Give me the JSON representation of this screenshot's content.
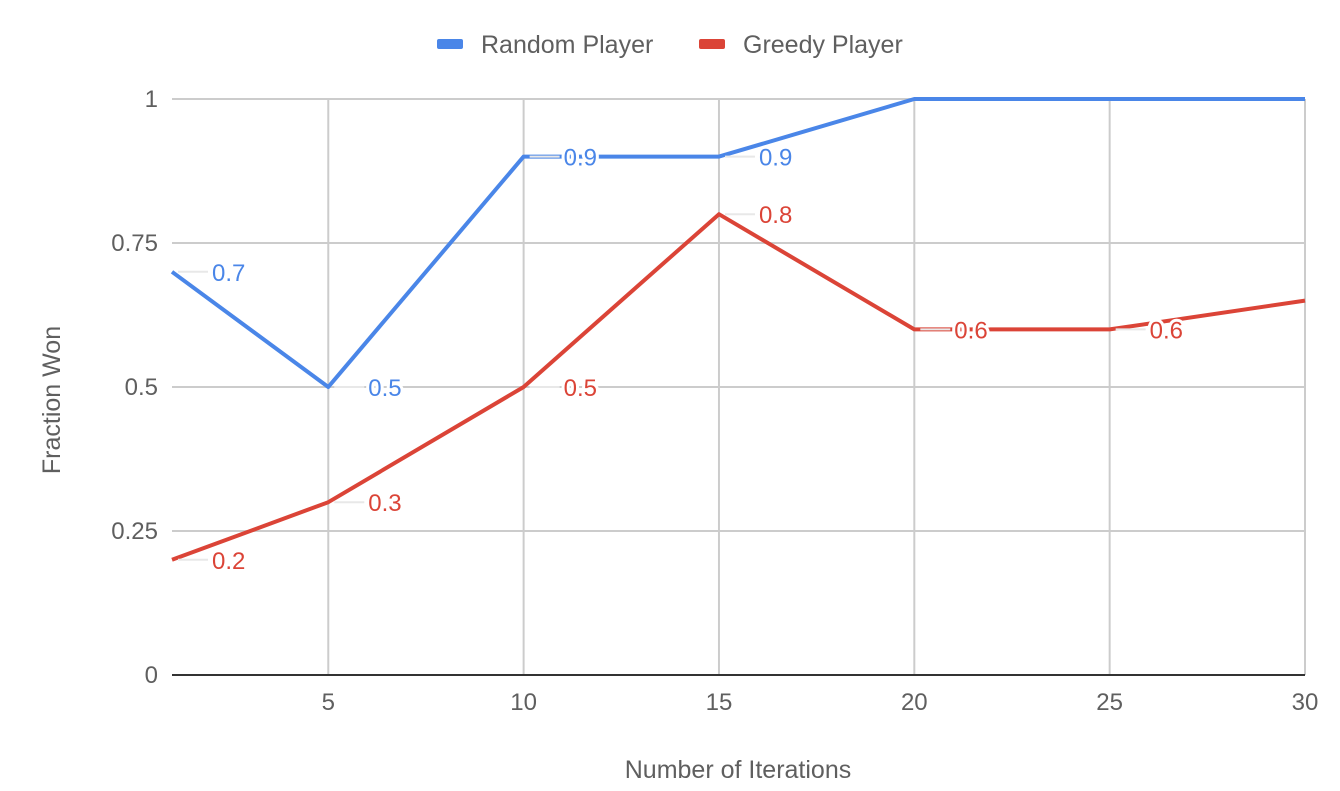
{
  "chart_data": {
    "type": "line",
    "xlabel": "Number of Iterations",
    "ylabel": "Fraction Won",
    "x": [
      1,
      5,
      10,
      15,
      20,
      25,
      30
    ],
    "x_tick_labels": [
      "5",
      "10",
      "15",
      "20",
      "25",
      "30"
    ],
    "x_ticks": [
      5,
      10,
      15,
      20,
      25,
      30
    ],
    "xlim": [
      1,
      30
    ],
    "y_tick_labels": [
      "0",
      "0.25",
      "0.5",
      "0.75",
      "1"
    ],
    "y_ticks": [
      0,
      0.25,
      0.5,
      0.75,
      1
    ],
    "ylim": [
      0,
      1
    ],
    "grid": true,
    "legend_position": "top",
    "series": [
      {
        "name": "Random Player",
        "color": "#4a86e8",
        "values": [
          0.7,
          0.5,
          0.9,
          0.9,
          1,
          1,
          1
        ],
        "point_labels": [
          "0.7",
          "0.5",
          "0.9",
          "0.9",
          "",
          "",
          ""
        ]
      },
      {
        "name": "Greedy Player",
        "color": "#db4437",
        "values": [
          0.2,
          0.3,
          0.5,
          0.8,
          0.6,
          0.6,
          0.65
        ],
        "point_labels": [
          "0.2",
          "0.3",
          "0.5",
          "0.8",
          "0.6",
          "0.6",
          ""
        ]
      }
    ]
  }
}
